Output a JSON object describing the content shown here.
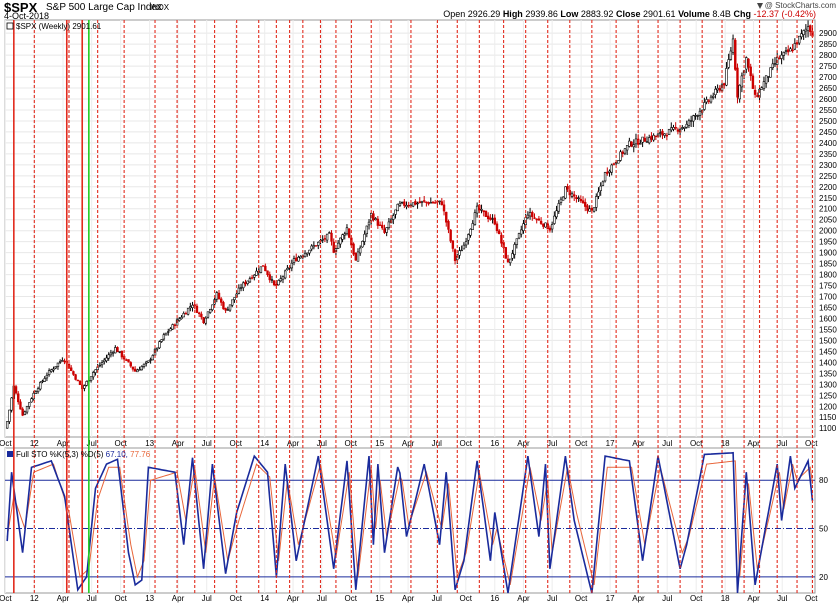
{
  "header": {
    "symbol": "$SPX",
    "name": "S&P 500 Large Cap Index",
    "exchange": "INDX",
    "date": "4-Oct-2018",
    "open_label": "Open",
    "open": "2926.29",
    "high_label": "High",
    "high": "2939.86",
    "low_label": "Low",
    "low": "2883.92",
    "close_label": "Close",
    "close": "2901.61",
    "volume_label": "Volume",
    "volume": "8.4B",
    "chg_label": "Chg",
    "chg": "-12.37 (-0.42%)",
    "credit": "@ StockCharts.com",
    "chg_color": "#cc0000",
    "credit_icon": "down-triangle-icon"
  },
  "chart_data": [
    {
      "type": "candlestick",
      "legend": "$SPX (Weekly) 2901.61",
      "legend_color": "#000000",
      "y_ticks": [
        1100,
        1150,
        1200,
        1250,
        1300,
        1350,
        1400,
        1450,
        1500,
        1550,
        1600,
        1650,
        1700,
        1750,
        1800,
        1850,
        1900,
        1950,
        2000,
        2050,
        2100,
        2150,
        2200,
        2250,
        2300,
        2350,
        2400,
        2450,
        2500,
        2550,
        2600,
        2650,
        2700,
        2750,
        2800,
        2850,
        2900
      ],
      "ylim": [
        1060,
        2960
      ],
      "x_ticks": [
        "Oct",
        "12",
        "Apr",
        "Jul",
        "Oct",
        "13",
        "Apr",
        "Jul",
        "Oct",
        "14",
        "Apr",
        "Jul",
        "Oct",
        "15",
        "Apr",
        "Jul",
        "Oct",
        "16",
        "Apr",
        "Jul",
        "Oct",
        "17",
        "Apr",
        "Jul",
        "Oct",
        "18",
        "Apr",
        "Jul",
        "Oct"
      ],
      "x_range": [
        "2011-10",
        "2018-10"
      ],
      "up_color": "#000000",
      "down_color": "#cc0000",
      "weekly_close_anchors": [
        [
          "2011-10-03",
          1100
        ],
        [
          "2011-10-28",
          1290
        ],
        [
          "2011-11-25",
          1160
        ],
        [
          "2011-12-30",
          1258
        ],
        [
          "2012-02-10",
          1345
        ],
        [
          "2012-04-02",
          1420
        ],
        [
          "2012-06-01",
          1280
        ],
        [
          "2012-07-06",
          1355
        ],
        [
          "2012-09-14",
          1465
        ],
        [
          "2012-11-16",
          1360
        ],
        [
          "2012-12-28",
          1402
        ],
        [
          "2013-02-15",
          1520
        ],
        [
          "2013-05-17",
          1667
        ],
        [
          "2013-06-21",
          1590
        ],
        [
          "2013-08-02",
          1710
        ],
        [
          "2013-08-30",
          1632
        ],
        [
          "2013-10-18",
          1745
        ],
        [
          "2013-12-27",
          1842
        ],
        [
          "2014-02-03",
          1741
        ],
        [
          "2014-04-04",
          1865
        ],
        [
          "2014-07-25",
          1980
        ],
        [
          "2014-08-08",
          1910
        ],
        [
          "2014-09-19",
          2012
        ],
        [
          "2014-10-17",
          1862
        ],
        [
          "2014-12-05",
          2075
        ],
        [
          "2015-01-16",
          1990
        ],
        [
          "2015-03-02",
          2117
        ],
        [
          "2015-05-22",
          2130
        ],
        [
          "2015-07-17",
          2127
        ],
        [
          "2015-08-28",
          1867
        ],
        [
          "2015-09-25",
          1935
        ],
        [
          "2015-11-06",
          2100
        ],
        [
          "2016-01-01",
          2040
        ],
        [
          "2016-02-12",
          1850
        ],
        [
          "2016-04-15",
          2080
        ],
        [
          "2016-06-24",
          2010
        ],
        [
          "2016-08-12",
          2190
        ],
        [
          "2016-11-04",
          2085
        ],
        [
          "2016-12-16",
          2260
        ],
        [
          "2017-03-03",
          2395
        ],
        [
          "2017-06-16",
          2440
        ],
        [
          "2017-09-01",
          2480
        ],
        [
          "2017-12-29",
          2675
        ],
        [
          "2018-01-26",
          2872
        ],
        [
          "2018-02-09",
          2620
        ],
        [
          "2018-03-09",
          2785
        ],
        [
          "2018-04-06",
          2605
        ],
        [
          "2018-06-15",
          2780
        ],
        [
          "2018-07-27",
          2820
        ],
        [
          "2018-09-21",
          2930
        ],
        [
          "2018-10-05",
          2902
        ]
      ]
    },
    {
      "type": "line",
      "legend_prefix": "Full STO %K(5,3) %D(5)",
      "k_value": "67.10",
      "d_value": "77.76",
      "series": [
        {
          "name": "%K(5,3)",
          "color": "#1a2b9c"
        },
        {
          "name": "%D(5)",
          "color": "#e8663a"
        }
      ],
      "ylim": [
        10,
        100
      ],
      "reference_lines": [
        80,
        50,
        20
      ],
      "y_ticks": [
        80,
        50,
        20
      ],
      "x_ticks": [
        "Oct",
        "12",
        "Apr",
        "Jul",
        "Oct",
        "13",
        "Apr",
        "Jul",
        "Oct",
        "14",
        "Apr",
        "Jul",
        "Oct",
        "15",
        "Apr",
        "Jul",
        "Oct",
        "16",
        "Apr",
        "Jul",
        "Oct",
        "17",
        "Apr",
        "Jul",
        "Oct",
        "18",
        "Apr",
        "Jul",
        "Oct"
      ],
      "k_anchors": [
        [
          "2011-10-03",
          30
        ],
        [
          "2011-10-21",
          85
        ],
        [
          "2011-11-25",
          35
        ],
        [
          "2011-12-23",
          88
        ],
        [
          "2012-02-24",
          92
        ],
        [
          "2012-04-06",
          70
        ],
        [
          "2012-05-18",
          12
        ],
        [
          "2012-06-15",
          20
        ],
        [
          "2012-07-13",
          75
        ],
        [
          "2012-08-17",
          90
        ],
        [
          "2012-09-21",
          93
        ],
        [
          "2012-10-26",
          35
        ],
        [
          "2012-11-16",
          15
        ],
        [
          "2012-12-07",
          18
        ],
        [
          "2012-12-28",
          88
        ],
        [
          "2013-03-22",
          85
        ],
        [
          "2013-04-19",
          40
        ],
        [
          "2013-05-17",
          94
        ],
        [
          "2013-06-21",
          25
        ],
        [
          "2013-07-19",
          90
        ],
        [
          "2013-08-30",
          22
        ],
        [
          "2013-10-04",
          60
        ],
        [
          "2013-11-29",
          95
        ],
        [
          "2014-01-10",
          85
        ],
        [
          "2014-02-07",
          20
        ],
        [
          "2014-03-07",
          90
        ],
        [
          "2014-04-11",
          30
        ],
        [
          "2014-06-20",
          95
        ],
        [
          "2014-08-08",
          25
        ],
        [
          "2014-09-19",
          92
        ],
        [
          "2014-10-17",
          12
        ],
        [
          "2014-11-28",
          95
        ],
        [
          "2014-12-12",
          40
        ],
        [
          "2014-12-26",
          90
        ],
        [
          "2015-01-16",
          35
        ],
        [
          "2015-03-02",
          92
        ],
        [
          "2015-03-27",
          45
        ],
        [
          "2015-05-22",
          90
        ],
        [
          "2015-07-10",
          40
        ],
        [
          "2015-07-31",
          85
        ],
        [
          "2015-08-28",
          12
        ],
        [
          "2015-09-25",
          30
        ],
        [
          "2015-11-06",
          92
        ],
        [
          "2015-12-18",
          30
        ],
        [
          "2016-01-01",
          60
        ],
        [
          "2016-02-12",
          10
        ],
        [
          "2016-04-15",
          95
        ],
        [
          "2016-05-20",
          45
        ],
        [
          "2016-06-10",
          90
        ],
        [
          "2016-06-24",
          25
        ],
        [
          "2016-08-12",
          95
        ],
        [
          "2016-09-09",
          55
        ],
        [
          "2016-11-04",
          10
        ],
        [
          "2016-12-16",
          95
        ],
        [
          "2017-03-03",
          92
        ],
        [
          "2017-04-14",
          30
        ],
        [
          "2017-06-02",
          95
        ],
        [
          "2017-08-11",
          25
        ],
        [
          "2017-09-01",
          40
        ],
        [
          "2017-10-27",
          96
        ],
        [
          "2018-01-26",
          97
        ],
        [
          "2018-02-09",
          10
        ],
        [
          "2018-03-09",
          85
        ],
        [
          "2018-04-06",
          15
        ],
        [
          "2018-06-15",
          90
        ],
        [
          "2018-06-29",
          55
        ],
        [
          "2018-07-27",
          95
        ],
        [
          "2018-08-10",
          75
        ],
        [
          "2018-09-21",
          92
        ],
        [
          "2018-10-05",
          67.1
        ]
      ],
      "d_anchors": [
        [
          "2011-10-03",
          40
        ],
        [
          "2011-10-28",
          70
        ],
        [
          "2011-12-02",
          50
        ],
        [
          "2011-12-30",
          85
        ],
        [
          "2012-03-02",
          90
        ],
        [
          "2012-04-20",
          60
        ],
        [
          "2012-05-25",
          20
        ],
        [
          "2012-06-22",
          25
        ],
        [
          "2012-07-20",
          68
        ],
        [
          "2012-08-24",
          88
        ],
        [
          "2012-09-28",
          88
        ],
        [
          "2012-11-02",
          40
        ],
        [
          "2012-11-23",
          20
        ],
        [
          "2012-12-14",
          30
        ],
        [
          "2013-01-04",
          80
        ],
        [
          "2013-03-29",
          85
        ],
        [
          "2013-04-26",
          55
        ],
        [
          "2013-05-24",
          88
        ],
        [
          "2013-06-28",
          35
        ],
        [
          "2013-07-26",
          82
        ],
        [
          "2013-09-06",
          30
        ],
        [
          "2013-10-11",
          55
        ],
        [
          "2013-12-06",
          90
        ],
        [
          "2014-01-17",
          82
        ],
        [
          "2014-02-14",
          30
        ],
        [
          "2014-03-14",
          80
        ],
        [
          "2014-04-18",
          40
        ],
        [
          "2014-06-27",
          90
        ],
        [
          "2014-08-15",
          32
        ],
        [
          "2014-09-26",
          85
        ],
        [
          "2014-10-24",
          20
        ],
        [
          "2014-12-05",
          88
        ],
        [
          "2014-12-19",
          50
        ],
        [
          "2015-01-02",
          80
        ],
        [
          "2015-01-23",
          45
        ],
        [
          "2015-03-09",
          85
        ],
        [
          "2015-04-03",
          52
        ],
        [
          "2015-05-29",
          85
        ],
        [
          "2015-07-17",
          50
        ],
        [
          "2015-08-07",
          78
        ],
        [
          "2015-09-04",
          20
        ],
        [
          "2015-10-02",
          35
        ],
        [
          "2015-11-13",
          85
        ],
        [
          "2015-12-25",
          40
        ],
        [
          "2016-01-08",
          50
        ],
        [
          "2016-02-19",
          15
        ],
        [
          "2016-04-22",
          88
        ],
        [
          "2016-05-27",
          55
        ],
        [
          "2016-06-17",
          80
        ],
        [
          "2016-07-01",
          35
        ],
        [
          "2016-08-19",
          88
        ],
        [
          "2016-09-16",
          60
        ],
        [
          "2016-11-11",
          15
        ],
        [
          "2016-12-23",
          88
        ],
        [
          "2017-03-10",
          88
        ],
        [
          "2017-04-21",
          40
        ],
        [
          "2017-06-09",
          88
        ],
        [
          "2017-08-18",
          35
        ],
        [
          "2017-09-08",
          45
        ],
        [
          "2017-11-03",
          90
        ],
        [
          "2018-02-02",
          92
        ],
        [
          "2018-02-16",
          20
        ],
        [
          "2018-03-16",
          78
        ],
        [
          "2018-04-13",
          25
        ],
        [
          "2018-06-22",
          85
        ],
        [
          "2018-07-06",
          62
        ],
        [
          "2018-08-03",
          90
        ],
        [
          "2018-08-17",
          80
        ],
        [
          "2018-09-28",
          88
        ],
        [
          "2018-10-05",
          77.76
        ]
      ]
    }
  ],
  "annotations": {
    "red_solid_lines": [
      "2011-10-28",
      "2012-04-13",
      "2012-06-01"
    ],
    "red_solid_color": "#e22b1e",
    "green_solid_lines": [
      "2012-06-22"
    ],
    "green_solid_color": "#22cc22",
    "red_dashed_lines": [
      "2012-01-01",
      "2012-04-20",
      "2012-07-20",
      "2012-10-12",
      "2013-01-18",
      "2013-03-29",
      "2013-05-24",
      "2013-07-26",
      "2013-10-04",
      "2013-12-13",
      "2014-02-07",
      "2014-03-21",
      "2014-05-02",
      "2014-06-27",
      "2014-08-15",
      "2014-10-03",
      "2014-12-05",
      "2015-02-06",
      "2015-04-10",
      "2015-07-03",
      "2015-09-04",
      "2015-11-13",
      "2016-01-29",
      "2016-04-08",
      "2016-06-17",
      "2016-08-26",
      "2016-11-04",
      "2017-01-20",
      "2017-03-31",
      "2017-06-02",
      "2017-08-11",
      "2017-10-20",
      "2017-12-22",
      "2018-03-02",
      "2018-04-20",
      "2018-06-15",
      "2018-08-17",
      "2018-10-05"
    ],
    "red_dashed_color": "#e22b1e"
  }
}
